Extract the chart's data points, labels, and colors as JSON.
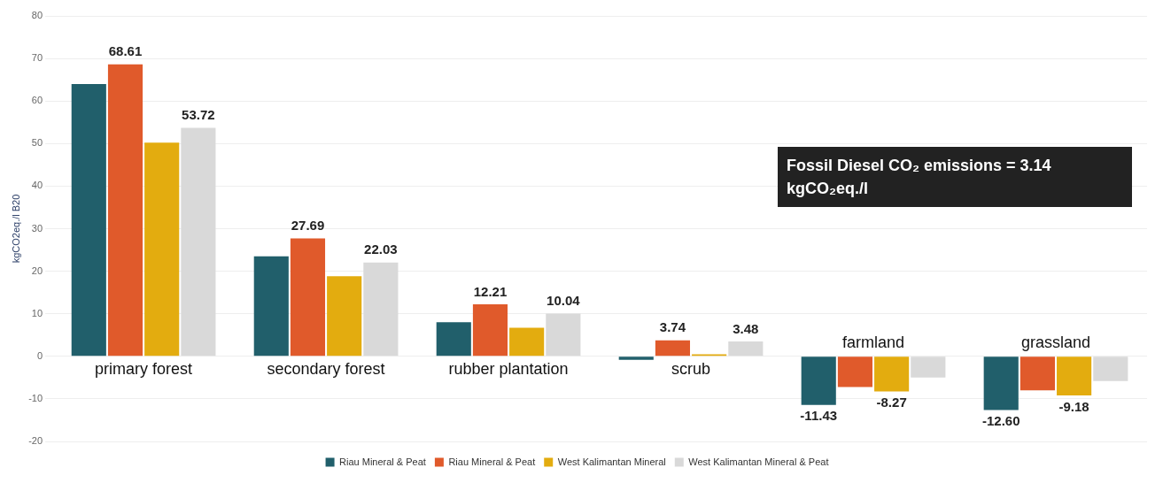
{
  "chart_data": {
    "type": "bar",
    "ylabel": "kgCO2eq./l B20",
    "categories": [
      "primary forest",
      "secondary forest",
      "rubber plantation",
      "scrub",
      "farmland",
      "grassland"
    ],
    "series": [
      {
        "name": "Riau Mineral & Peat",
        "color": "#215f6b",
        "values": [
          64,
          23.5,
          8,
          -0.8,
          -11.43,
          -12.6
        ],
        "value_labels": [
          null,
          null,
          null,
          null,
          "-11.43",
          "-12.60"
        ]
      },
      {
        "name": "Riau Mineral & Peat",
        "color": "#e05a2b",
        "values": [
          68.61,
          27.69,
          12.21,
          3.74,
          -7.2,
          -8
        ],
        "value_labels": [
          "68.61",
          "27.69",
          "12.21",
          "3.74",
          null,
          null
        ]
      },
      {
        "name": "West Kalimantan Mineral",
        "color": "#e3ac0f",
        "values": [
          50.2,
          18.8,
          6.7,
          0.5,
          -8.27,
          -9.18
        ],
        "value_labels": [
          null,
          null,
          null,
          null,
          "-8.27",
          "-9.18"
        ]
      },
      {
        "name": "West Kalimantan Mineral & Peat",
        "color": "#d9d9d9",
        "values": [
          53.72,
          22.03,
          10.04,
          3.48,
          -5,
          -5.8
        ],
        "value_labels": [
          "53.72",
          "22.03",
          "10.04",
          "3.48",
          null,
          null
        ]
      }
    ],
    "ylim": [
      -20,
      80
    ],
    "yticks": [
      -20,
      -10,
      0,
      10,
      20,
      30,
      40,
      50,
      60,
      70,
      80
    ],
    "grid": "y",
    "legend": "bottom",
    "annotations": [
      "Fossil Diesel CO₂ emissions = 3.14 kgCO₂eq./l"
    ]
  }
}
